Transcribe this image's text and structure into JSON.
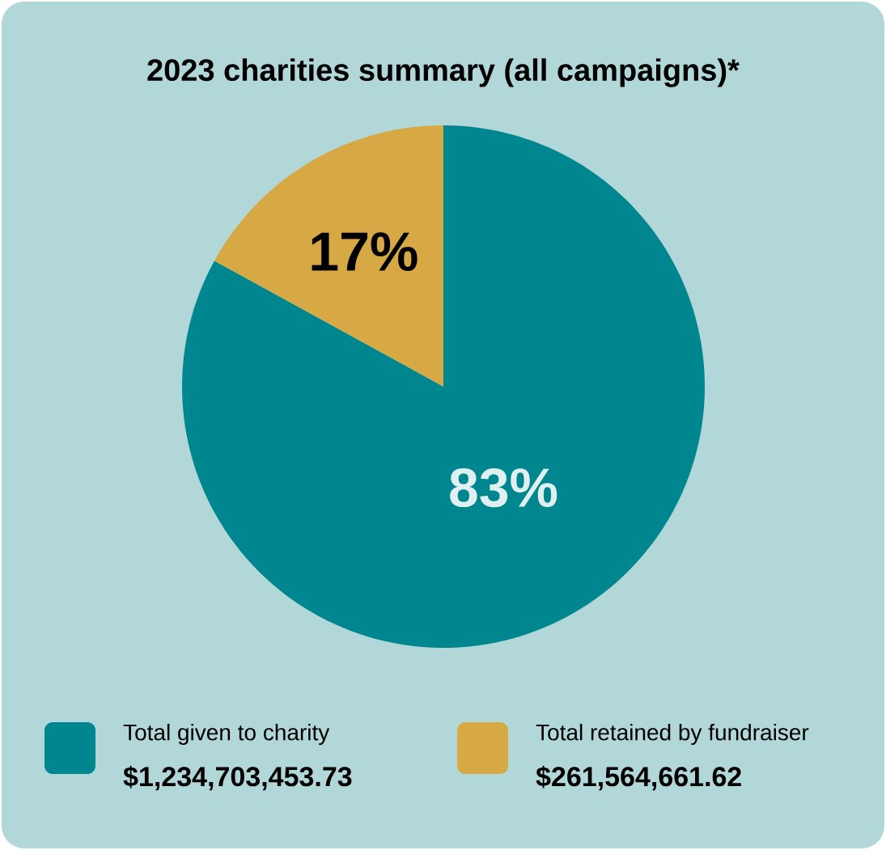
{
  "chart_data": {
    "type": "pie",
    "title": "2023 charities summary (all campaigns)*",
    "categories": [
      "Total given to charity",
      "Total retained by fundraiser"
    ],
    "values": [
      83,
      17
    ],
    "colors": [
      "#00868f",
      "#d7a945"
    ],
    "value_labels": [
      "83%",
      "17%"
    ],
    "legend": "bottom",
    "annotations": [
      "$1,234,703,453.73",
      "$261,564,661.62"
    ]
  }
}
